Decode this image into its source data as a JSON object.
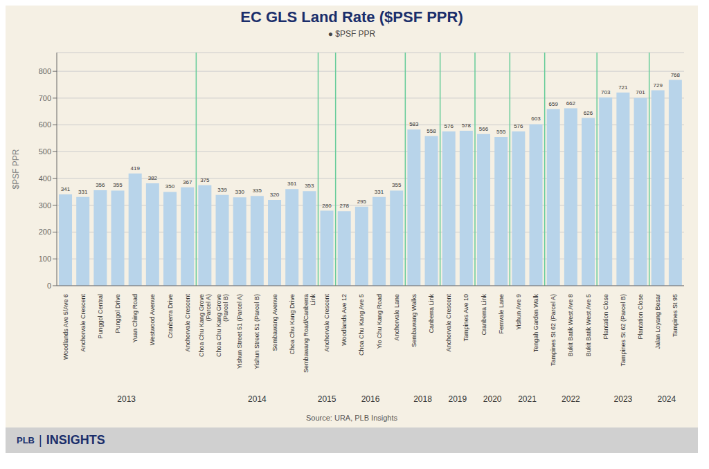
{
  "chart_data": {
    "type": "bar",
    "title": "EC GLS Land Rate ($PSF PPR)",
    "subtitle": "●  $PSF PPR",
    "ylabel": "$PSF PPR",
    "annotations": [
      "Source: URA, PLB Insights",
      "PLB",
      "|",
      "INSIGHTS"
    ],
    "color": "#b8d4ea",
    "categories": [
      "Woodlands Ave 5/Ave 6",
      "Anchorvale Crescent",
      "Punggol Central",
      "Punggol Drive",
      "Yuan Ching Road",
      "Westwood Avenue",
      "Cranberra Drive",
      "Anchorvale Crescent",
      "Choa Chu Kang Grove\n(Parcel A)",
      "Choa Chu Kang Grove\n(Parcel B)",
      "Yishun Street 51 (Parcel A)",
      "Yishun Street 51 (Parcel B)",
      "Sembawang Avenue",
      "Choa Chu Kang Drive",
      "Sembawang Road/Canberra\nLink",
      "Anchorvale Crescent",
      "Woodlands Ave 12",
      "Choa Chu Kang Ave 5",
      "Yio Chu Kang Road",
      "Anchorvale Lane",
      "Sembawang Walks",
      "Canberra Link",
      "Anchorvale Crescent",
      "Tampines Ave 10",
      "Cranberra Link",
      "Fernvale Lane",
      "Yishun Ave 9",
      "Tengah Garden Walk",
      "Tampines St 62 (Parcel A)",
      "Bukit Batik West Ave 8",
      "Bukit Batik West Ave 5",
      "Plantation Close",
      "Tampines St 62 (Parcel B)",
      "Plantation Close",
      "Jalan Loyang Besar",
      "Tampines St 95"
    ],
    "values": [
      341,
      331,
      356,
      355,
      419,
      382,
      350,
      367,
      375,
      339,
      330,
      335,
      320,
      361,
      353,
      280,
      278,
      295,
      331,
      355,
      583,
      558,
      576,
      578,
      566,
      555,
      576,
      603,
      659,
      662,
      626,
      703,
      721,
      701,
      729,
      768
    ],
    "groups": [
      "2013",
      "2013",
      "2013",
      "2013",
      "2013",
      "2013",
      "2013",
      "2013",
      "2014",
      "2014",
      "2014",
      "2014",
      "2014",
      "2014",
      "2014",
      "2015",
      "2016",
      "2016",
      "2016",
      "2016",
      "2018",
      "2018",
      "2019",
      "2019",
      "2020",
      "2020",
      "2021",
      "2021",
      "2022",
      "2022",
      "2022",
      "2023",
      "2023",
      "2023",
      "2024",
      "2024"
    ],
    "ylim": [
      0,
      870
    ],
    "yticks": [
      0,
      100,
      200,
      300,
      400,
      500,
      600,
      700,
      800
    ],
    "grid": true,
    "data_labels": true
  }
}
